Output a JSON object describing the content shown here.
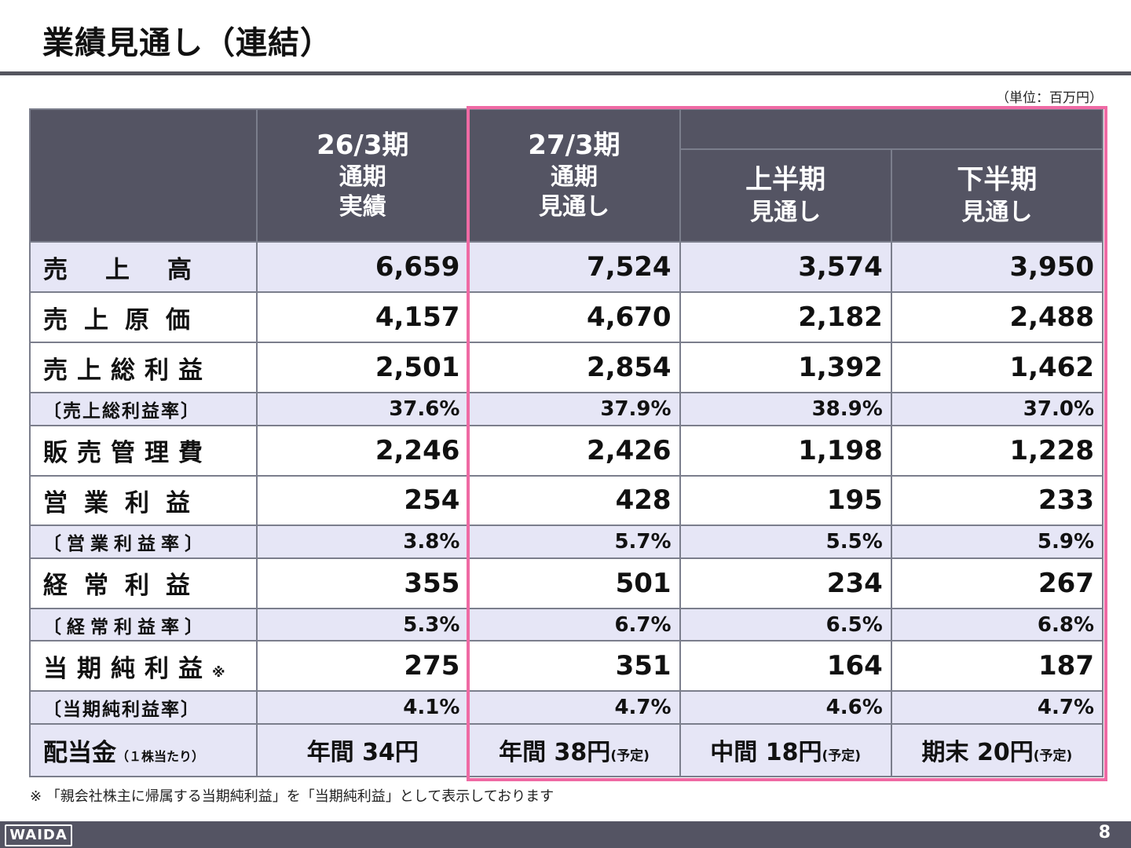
{
  "title": "業績見通し（連結）",
  "unit": "（単位：百万円）",
  "header": {
    "col1": [
      "26/3期",
      "通期",
      "実績"
    ],
    "col2": [
      "27/3期",
      "通期",
      "見通し"
    ],
    "col3": [
      "上半期",
      "見通し"
    ],
    "col4": [
      "下半期",
      "見通し"
    ]
  },
  "rows": [
    {
      "label": "売上高",
      "values": [
        "6,659",
        "7,524",
        "3,574",
        "3,950"
      ]
    },
    {
      "label": "売上原価",
      "values": [
        "4,157",
        "4,670",
        "2,182",
        "2,488"
      ]
    },
    {
      "label": "売上総利益",
      "values": [
        "2,501",
        "2,854",
        "1,392",
        "1,462"
      ]
    },
    {
      "label": "〔売上総利益率〕",
      "values": [
        "37.6%",
        "37.9%",
        "38.9%",
        "37.0%"
      ]
    },
    {
      "label": "販売管理費",
      "values": [
        "2,246",
        "2,426",
        "1,198",
        "1,228"
      ]
    },
    {
      "label": "営業利益",
      "values": [
        "254",
        "428",
        "195",
        "233"
      ]
    },
    {
      "label": "〔営業利益率〕",
      "values": [
        "3.8%",
        "5.7%",
        "5.5%",
        "5.9%"
      ]
    },
    {
      "label": "経常利益",
      "values": [
        "355",
        "501",
        "234",
        "267"
      ]
    },
    {
      "label": "〔経常利益率〕",
      "values": [
        "5.3%",
        "6.7%",
        "6.5%",
        "6.8%"
      ]
    },
    {
      "label": "当期純利益",
      "label_suffix": "※",
      "values": [
        "275",
        "351",
        "164",
        "187"
      ]
    },
    {
      "label": "〔当期純利益率〕",
      "values": [
        "4.1%",
        "4.7%",
        "4.6%",
        "4.7%"
      ]
    }
  ],
  "dividend": {
    "label": "配当金",
    "label_note": "（１株当たり）",
    "values": [
      {
        "main": "年間 34円",
        "note": ""
      },
      {
        "main": "年間 38円",
        "note": "(予定)"
      },
      {
        "main": "中間 18円",
        "note": "(予定)"
      },
      {
        "main": "期末 20円",
        "note": "(予定)"
      }
    ]
  },
  "footnote": "※ 「親会社株主に帰属する当期純利益」を「当期純利益」として表示しております",
  "footer": {
    "logo": "WAIDA",
    "page": "8"
  },
  "colors": {
    "header_bg": "#545463",
    "row_shade": "#e6e6f6",
    "highlight": "#ef6aa4"
  }
}
